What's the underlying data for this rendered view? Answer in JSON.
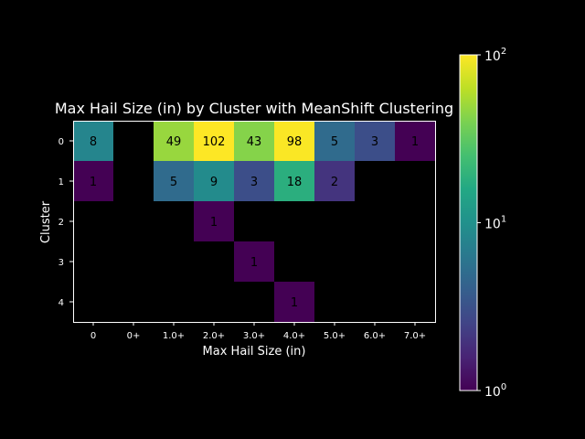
{
  "chart_data": {
    "type": "heatmap",
    "title": "Max Hail Size (in) by Cluster with MeanShift Clustering",
    "xlabel": "Max Hail Size (in)",
    "ylabel": "Cluster",
    "x_categories": [
      "0",
      "0+",
      "1.0+",
      "2.0+",
      "3.0+",
      "4.0+",
      "5.0+",
      "6.0+",
      "7.0+"
    ],
    "y_categories": [
      "0",
      "1",
      "2",
      "3",
      "4"
    ],
    "values": [
      [
        8,
        null,
        49,
        102,
        43,
        98,
        5,
        3,
        1
      ],
      [
        1,
        null,
        5,
        9,
        3,
        18,
        2,
        null,
        null
      ],
      [
        null,
        null,
        null,
        1,
        null,
        null,
        null,
        null,
        null
      ],
      [
        null,
        null,
        null,
        null,
        1,
        null,
        null,
        null,
        null
      ],
      [
        null,
        null,
        null,
        null,
        null,
        1,
        null,
        null,
        null
      ]
    ],
    "colorscale": "viridis",
    "color_scale_type": "log",
    "colorbar_range": [
      1,
      100
    ],
    "colorbar_ticks": [
      {
        "base": "10",
        "exp": "0",
        "value": 1
      },
      {
        "base": "10",
        "exp": "1",
        "value": 10
      },
      {
        "base": "10",
        "exp": "2",
        "value": 100
      }
    ],
    "background": "#000000",
    "text_color": "#ffffff",
    "cell_label_color": "#000000"
  }
}
